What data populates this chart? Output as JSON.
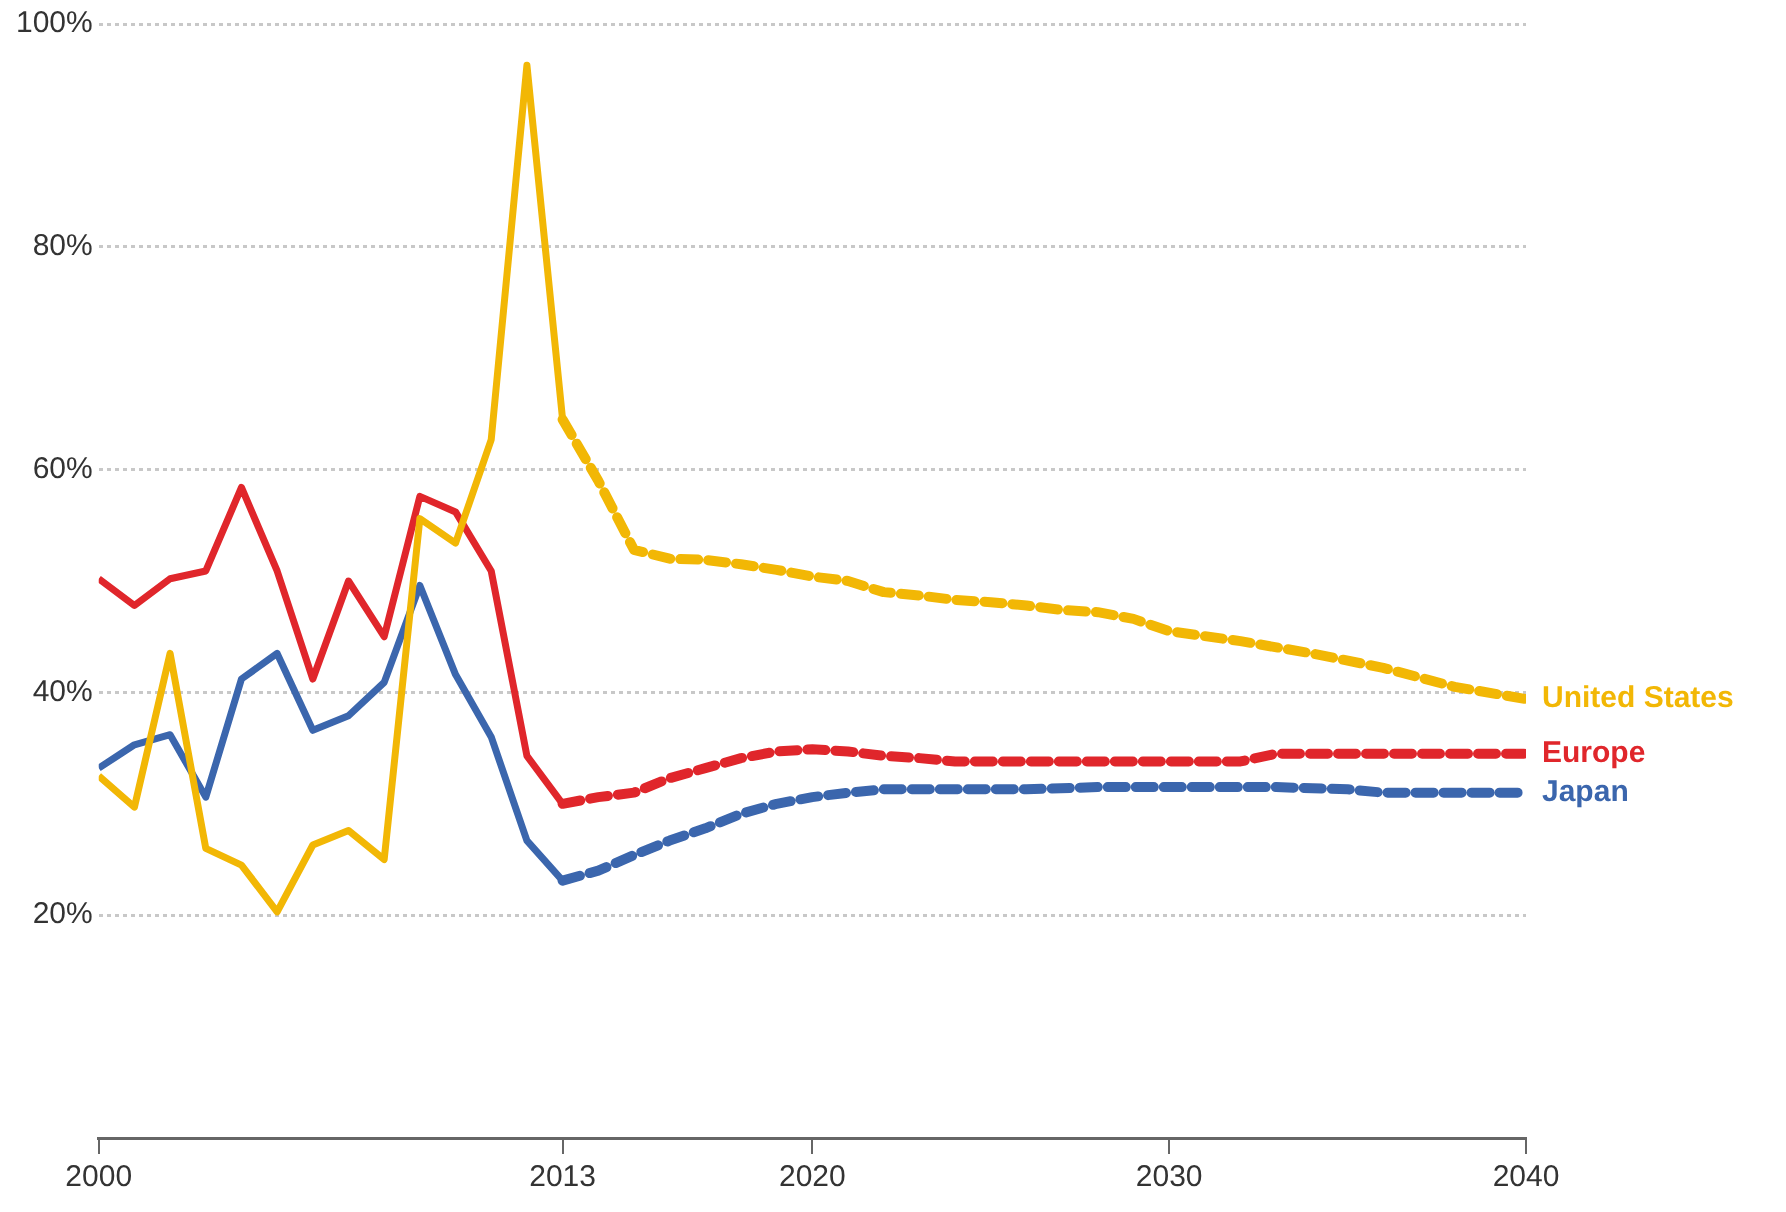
{
  "chart_data": {
    "type": "line",
    "xlim": [
      2000,
      2040
    ],
    "xticks": [
      2000,
      2013,
      2020,
      2030,
      2040
    ],
    "ylim": [
      0,
      100
    ],
    "yticks": [
      {
        "value": 20,
        "label": "20%"
      },
      {
        "value": 40,
        "label": "40%"
      },
      {
        "value": 60,
        "label": "60%"
      },
      {
        "value": 80,
        "label": "80%"
      },
      {
        "value": 100,
        "label": "100%"
      }
    ],
    "grid": "y",
    "legend": false,
    "marker": "none",
    "series": [
      {
        "name": "United States",
        "color": "#f2b705",
        "line_style": "solid",
        "x": [
          2000,
          2001,
          2002,
          2003,
          2004,
          2005,
          2006,
          2007,
          2008,
          2009,
          2010,
          2011,
          2012,
          2013
        ],
        "values": [
          32.5,
          29.7,
          43.5,
          26,
          24.5,
          20.3,
          26.3,
          27.6,
          25,
          55.6,
          53.4,
          62.7,
          96.3,
          64.5
        ]
      },
      {
        "name": "Europe",
        "color": "#e0262b",
        "line_style": "solid",
        "x": [
          2000,
          2001,
          2002,
          2003,
          2004,
          2005,
          2006,
          2007,
          2008,
          2009,
          2010,
          2011,
          2012,
          2013
        ],
        "values": [
          50.2,
          47.8,
          50.2,
          50.9,
          58.4,
          50.9,
          41.2,
          50,
          45,
          57.6,
          56.2,
          50.9,
          34.3,
          30
        ]
      },
      {
        "name": "Japan",
        "color": "#3b66ad",
        "line_style": "solid",
        "x": [
          2000,
          2001,
          2002,
          2003,
          2004,
          2005,
          2006,
          2007,
          2008,
          2009,
          2010,
          2011,
          2012,
          2013
        ],
        "values": [
          33.2,
          35.3,
          36.2,
          30.6,
          41.2,
          43.5,
          36.6,
          37.9,
          40.9,
          49.6,
          41.6,
          36,
          26.7,
          23.1
        ]
      },
      {
        "color": "#f2b705",
        "line_style": "dashed",
        "x": [
          2013,
          2014,
          2015,
          2016,
          2017,
          2018,
          2019,
          2020,
          2021,
          2022,
          2023,
          2024,
          2025,
          2026,
          2027,
          2028,
          2029,
          2030,
          2032,
          2034,
          2036,
          2038,
          2040
        ],
        "values": [
          64.5,
          59,
          52.8,
          52,
          51.9,
          51.5,
          51,
          50.4,
          50,
          49,
          48.7,
          48.3,
          48.1,
          47.8,
          47.4,
          47.2,
          46.6,
          45.5,
          44.6,
          43.5,
          42.2,
          40.5,
          39.4
        ]
      },
      {
        "color": "#e0262b",
        "line_style": "dashed",
        "x": [
          2013,
          2014,
          2015,
          2016,
          2017,
          2018,
          2019,
          2020,
          2021,
          2022,
          2023,
          2024,
          2026,
          2028,
          2030,
          2032,
          2033,
          2036,
          2040
        ],
        "values": [
          30,
          30.6,
          31,
          32.3,
          33.2,
          34.1,
          34.7,
          34.9,
          34.7,
          34.3,
          34.1,
          33.8,
          33.8,
          33.8,
          33.8,
          33.8,
          34.5,
          34.5,
          34.5
        ]
      },
      {
        "color": "#3b66ad",
        "line_style": "dashed",
        "x": [
          2013,
          2014,
          2015,
          2016,
          2017,
          2018,
          2019,
          2020,
          2021,
          2022,
          2024,
          2026,
          2028,
          2030,
          2033,
          2035,
          2036,
          2040
        ],
        "values": [
          23.1,
          24,
          25.4,
          26.7,
          27.8,
          29.1,
          30,
          30.6,
          31,
          31.3,
          31.3,
          31.3,
          31.5,
          31.5,
          31.5,
          31.3,
          31,
          31
        ]
      }
    ]
  }
}
